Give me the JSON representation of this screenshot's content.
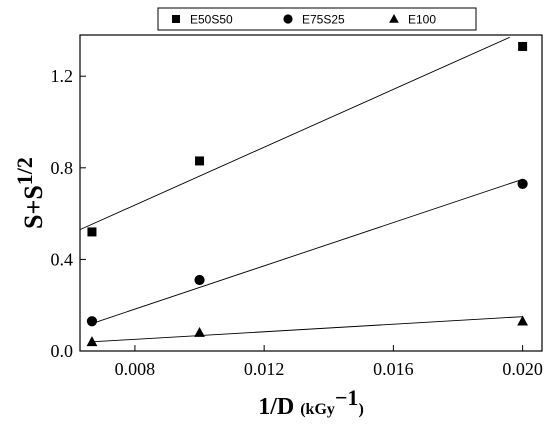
{
  "chart_data": {
    "type": "scatter",
    "title": "",
    "xlabel": {
      "main": "1/D",
      "unit_prefix": "(kGy",
      "exponent": "−1",
      "unit_suffix": ")"
    },
    "ylabel": {
      "main": "S+S",
      "exponent": "1/2"
    },
    "xlim": [
      0.0063,
      0.0206
    ],
    "ylim": [
      0.0,
      1.38
    ],
    "x_ticks": [
      0.008,
      0.012,
      0.016,
      0.02
    ],
    "x_tick_labels": [
      "0.008",
      "0.012",
      "0.016",
      "0.020"
    ],
    "y_ticks": [
      0.0,
      0.4,
      0.8,
      1.2
    ],
    "y_tick_labels": [
      "0.0",
      "0.4",
      "0.8",
      "1.2"
    ],
    "grid": false,
    "legend_placement": "top",
    "series": [
      {
        "name": "E50S50",
        "marker": "square",
        "x": [
          0.00667,
          0.01,
          0.02
        ],
        "y": [
          0.52,
          0.83,
          1.33
        ],
        "fit_line": {
          "x": [
            0.0063,
            0.0196
          ],
          "y": [
            0.53,
            1.37
          ]
        }
      },
      {
        "name": "E75S25",
        "marker": "circle",
        "x": [
          0.00667,
          0.01,
          0.02
        ],
        "y": [
          0.13,
          0.31,
          0.73
        ],
        "fit_line": {
          "x": [
            0.00667,
            0.02
          ],
          "y": [
            0.12,
            0.75
          ]
        }
      },
      {
        "name": "E100",
        "marker": "triangle",
        "x": [
          0.00667,
          0.01,
          0.02
        ],
        "y": [
          0.04,
          0.08,
          0.13
        ],
        "fit_line": {
          "x": [
            0.00667,
            0.02
          ],
          "y": [
            0.04,
            0.15
          ]
        }
      }
    ]
  }
}
